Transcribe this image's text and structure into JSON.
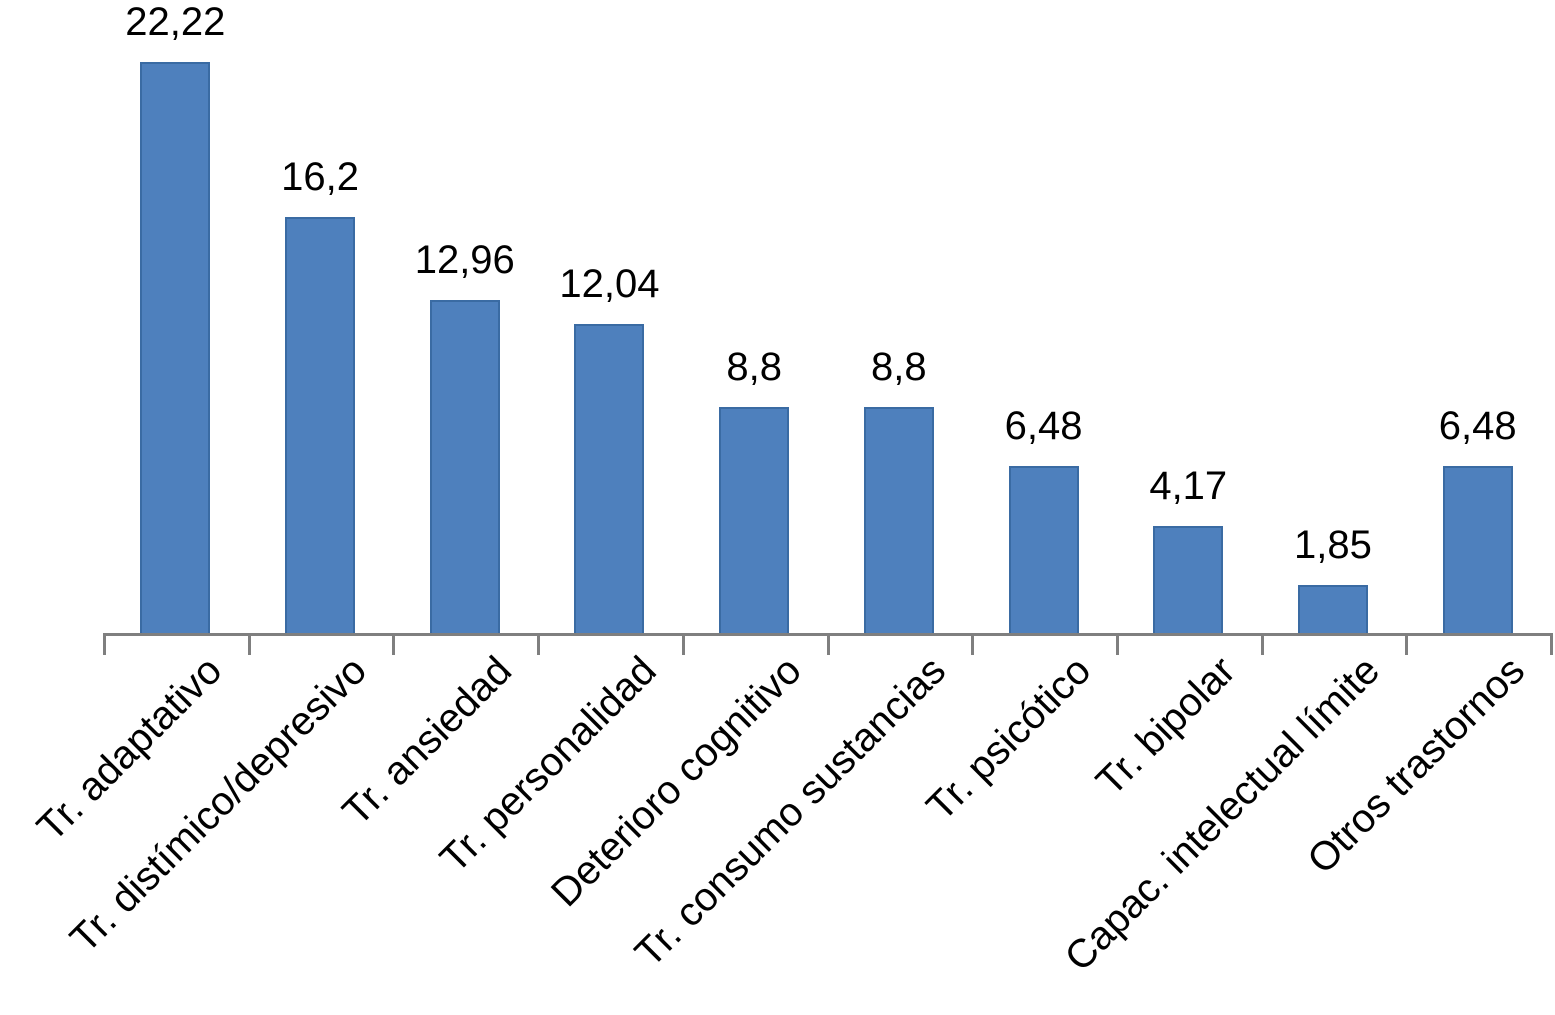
{
  "chart_data": {
    "type": "bar",
    "title": "",
    "xlabel": "",
    "ylabel": "",
    "categories": [
      "Tr. adaptativo",
      "Tr. distímico/depresivo",
      "Tr. ansiedad",
      "Tr. personalidad",
      "Deterioro cognitivo",
      "Tr. consumo sustancias",
      "Tr. psicótico",
      "Tr. bipolar",
      "Capac. intelectual límite",
      "Otros trastornos"
    ],
    "values": [
      22.22,
      16.2,
      12.96,
      12.04,
      8.8,
      8.8,
      6.48,
      4.17,
      1.85,
      6.48
    ],
    "value_labels": [
      "22,22",
      "16,2",
      "12,96",
      "12,04",
      "8,8",
      "8,8",
      "6,48",
      "4,17",
      "1,85",
      "6,48"
    ],
    "decimal_separator": ",",
    "ylim": [
      0,
      22.22
    ],
    "grid": false,
    "legend": "none",
    "y_axis_visible": false,
    "x_tick_label_rotation_deg": 45,
    "colors": {
      "bar_fill": "#4e80bd",
      "bar_border": "#3a6ba3",
      "axis": "#7f7f7f",
      "text": "#000000",
      "background": "#ffffff"
    }
  }
}
